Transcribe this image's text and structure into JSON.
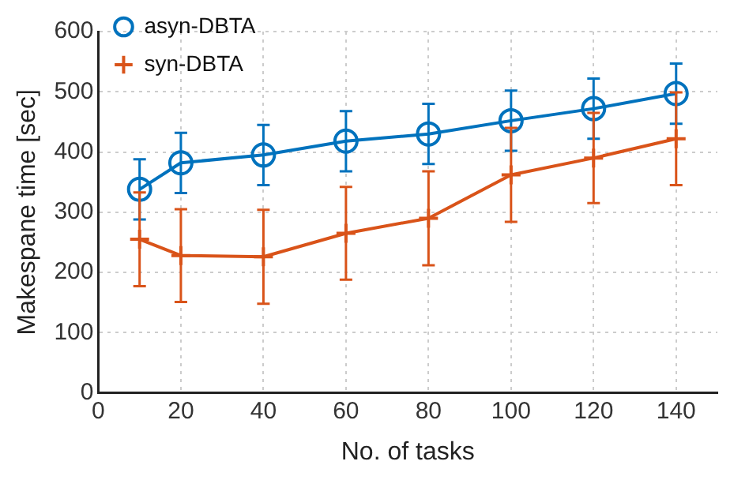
{
  "chart_data": {
    "type": "line",
    "xlabel": "No. of tasks",
    "ylabel": "Makespane time [sec]",
    "x": [
      10,
      20,
      40,
      60,
      80,
      100,
      120,
      140
    ],
    "series": [
      {
        "name": "asyn-DBTA",
        "color": "#0072bd",
        "marker": "circle",
        "values": [
          338,
          382,
          395,
          418,
          430,
          452,
          472,
          497
        ],
        "errors": [
          50,
          50,
          50,
          50,
          50,
          50,
          50,
          50
        ]
      },
      {
        "name": "syn-DBTA",
        "color": "#d95319",
        "marker": "cross",
        "values": [
          255,
          228,
          226,
          265,
          290,
          362,
          390,
          422
        ],
        "errors": [
          78,
          77,
          78,
          77,
          78,
          78,
          75,
          77
        ]
      }
    ],
    "xlim": [
      0,
      150
    ],
    "xticks": [
      0,
      20,
      40,
      60,
      80,
      100,
      120,
      140
    ],
    "ylim": [
      0,
      600
    ],
    "yticks": [
      0,
      100,
      200,
      300,
      400,
      500,
      600
    ],
    "grid": true,
    "legend": "top left",
    "line_style": "solid"
  }
}
